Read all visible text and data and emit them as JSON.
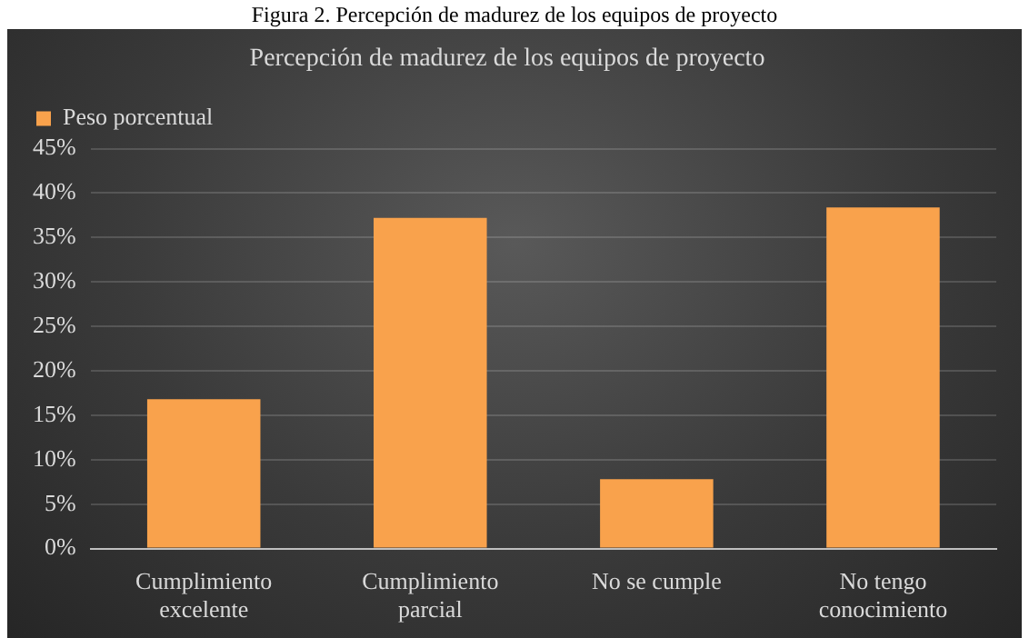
{
  "chart_data": {
    "type": "bar",
    "title": "Percepción de madurez de los equipos de proyecto",
    "annotations": [
      "Figura 2. Percepción de madurez de los equipos de proyecto"
    ],
    "categories": [
      "Cumplimiento excelente",
      "Cumplimiento parcial",
      "No se cumple",
      "No tengo conocimiento"
    ],
    "series": [
      {
        "name": "Peso porcentual",
        "color": "#f9a24c",
        "values": [
          16.8,
          37.2,
          7.8,
          38.4
        ]
      }
    ],
    "ylim": [
      0,
      45
    ],
    "yticks": [
      {
        "value": 0,
        "label": "0%"
      },
      {
        "value": 5,
        "label": "5%"
      },
      {
        "value": 10,
        "label": "10%"
      },
      {
        "value": 15,
        "label": "15%"
      },
      {
        "value": 20,
        "label": "20%"
      },
      {
        "value": 25,
        "label": "25%"
      },
      {
        "value": 30,
        "label": "30%"
      },
      {
        "value": 35,
        "label": "35%"
      },
      {
        "value": 40,
        "label": "40%"
      },
      {
        "value": 45,
        "label": "45%"
      }
    ],
    "grid": "y",
    "legend": "top left"
  }
}
